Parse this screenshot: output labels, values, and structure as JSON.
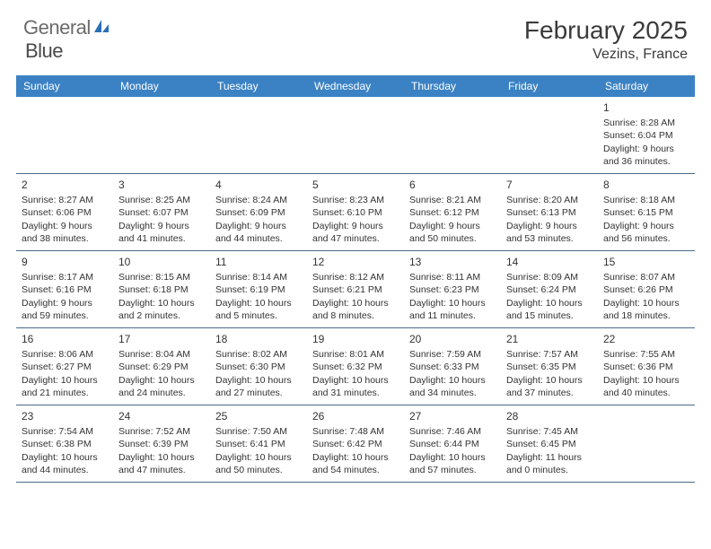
{
  "logo": {
    "text_general": "General",
    "text_blue": "Blue"
  },
  "title": {
    "month": "February 2025",
    "location": "Vezins, France"
  },
  "colors": {
    "header_bg": "#3b82c4",
    "header_text": "#ffffff",
    "cell_border": "#4a6a8a",
    "text": "#333333",
    "logo_gray": "#6b6b6b",
    "logo_blue": "#2a6fb5",
    "background": "#ffffff"
  },
  "day_names": [
    "Sunday",
    "Monday",
    "Tuesday",
    "Wednesday",
    "Thursday",
    "Friday",
    "Saturday"
  ],
  "leading_blanks": 6,
  "days": [
    {
      "n": "1",
      "sunrise": "8:28 AM",
      "sunset": "6:04 PM",
      "daylight": "9 hours and 36 minutes."
    },
    {
      "n": "2",
      "sunrise": "8:27 AM",
      "sunset": "6:06 PM",
      "daylight": "9 hours and 38 minutes."
    },
    {
      "n": "3",
      "sunrise": "8:25 AM",
      "sunset": "6:07 PM",
      "daylight": "9 hours and 41 minutes."
    },
    {
      "n": "4",
      "sunrise": "8:24 AM",
      "sunset": "6:09 PM",
      "daylight": "9 hours and 44 minutes."
    },
    {
      "n": "5",
      "sunrise": "8:23 AM",
      "sunset": "6:10 PM",
      "daylight": "9 hours and 47 minutes."
    },
    {
      "n": "6",
      "sunrise": "8:21 AM",
      "sunset": "6:12 PM",
      "daylight": "9 hours and 50 minutes."
    },
    {
      "n": "7",
      "sunrise": "8:20 AM",
      "sunset": "6:13 PM",
      "daylight": "9 hours and 53 minutes."
    },
    {
      "n": "8",
      "sunrise": "8:18 AM",
      "sunset": "6:15 PM",
      "daylight": "9 hours and 56 minutes."
    },
    {
      "n": "9",
      "sunrise": "8:17 AM",
      "sunset": "6:16 PM",
      "daylight": "9 hours and 59 minutes."
    },
    {
      "n": "10",
      "sunrise": "8:15 AM",
      "sunset": "6:18 PM",
      "daylight": "10 hours and 2 minutes."
    },
    {
      "n": "11",
      "sunrise": "8:14 AM",
      "sunset": "6:19 PM",
      "daylight": "10 hours and 5 minutes."
    },
    {
      "n": "12",
      "sunrise": "8:12 AM",
      "sunset": "6:21 PM",
      "daylight": "10 hours and 8 minutes."
    },
    {
      "n": "13",
      "sunrise": "8:11 AM",
      "sunset": "6:23 PM",
      "daylight": "10 hours and 11 minutes."
    },
    {
      "n": "14",
      "sunrise": "8:09 AM",
      "sunset": "6:24 PM",
      "daylight": "10 hours and 15 minutes."
    },
    {
      "n": "15",
      "sunrise": "8:07 AM",
      "sunset": "6:26 PM",
      "daylight": "10 hours and 18 minutes."
    },
    {
      "n": "16",
      "sunrise": "8:06 AM",
      "sunset": "6:27 PM",
      "daylight": "10 hours and 21 minutes."
    },
    {
      "n": "17",
      "sunrise": "8:04 AM",
      "sunset": "6:29 PM",
      "daylight": "10 hours and 24 minutes."
    },
    {
      "n": "18",
      "sunrise": "8:02 AM",
      "sunset": "6:30 PM",
      "daylight": "10 hours and 27 minutes."
    },
    {
      "n": "19",
      "sunrise": "8:01 AM",
      "sunset": "6:32 PM",
      "daylight": "10 hours and 31 minutes."
    },
    {
      "n": "20",
      "sunrise": "7:59 AM",
      "sunset": "6:33 PM",
      "daylight": "10 hours and 34 minutes."
    },
    {
      "n": "21",
      "sunrise": "7:57 AM",
      "sunset": "6:35 PM",
      "daylight": "10 hours and 37 minutes."
    },
    {
      "n": "22",
      "sunrise": "7:55 AM",
      "sunset": "6:36 PM",
      "daylight": "10 hours and 40 minutes."
    },
    {
      "n": "23",
      "sunrise": "7:54 AM",
      "sunset": "6:38 PM",
      "daylight": "10 hours and 44 minutes."
    },
    {
      "n": "24",
      "sunrise": "7:52 AM",
      "sunset": "6:39 PM",
      "daylight": "10 hours and 47 minutes."
    },
    {
      "n": "25",
      "sunrise": "7:50 AM",
      "sunset": "6:41 PM",
      "daylight": "10 hours and 50 minutes."
    },
    {
      "n": "26",
      "sunrise": "7:48 AM",
      "sunset": "6:42 PM",
      "daylight": "10 hours and 54 minutes."
    },
    {
      "n": "27",
      "sunrise": "7:46 AM",
      "sunset": "6:44 PM",
      "daylight": "10 hours and 57 minutes."
    },
    {
      "n": "28",
      "sunrise": "7:45 AM",
      "sunset": "6:45 PM",
      "daylight": "11 hours and 0 minutes."
    }
  ],
  "labels": {
    "sunrise": "Sunrise: ",
    "sunset": "Sunset: ",
    "daylight": "Daylight: "
  }
}
